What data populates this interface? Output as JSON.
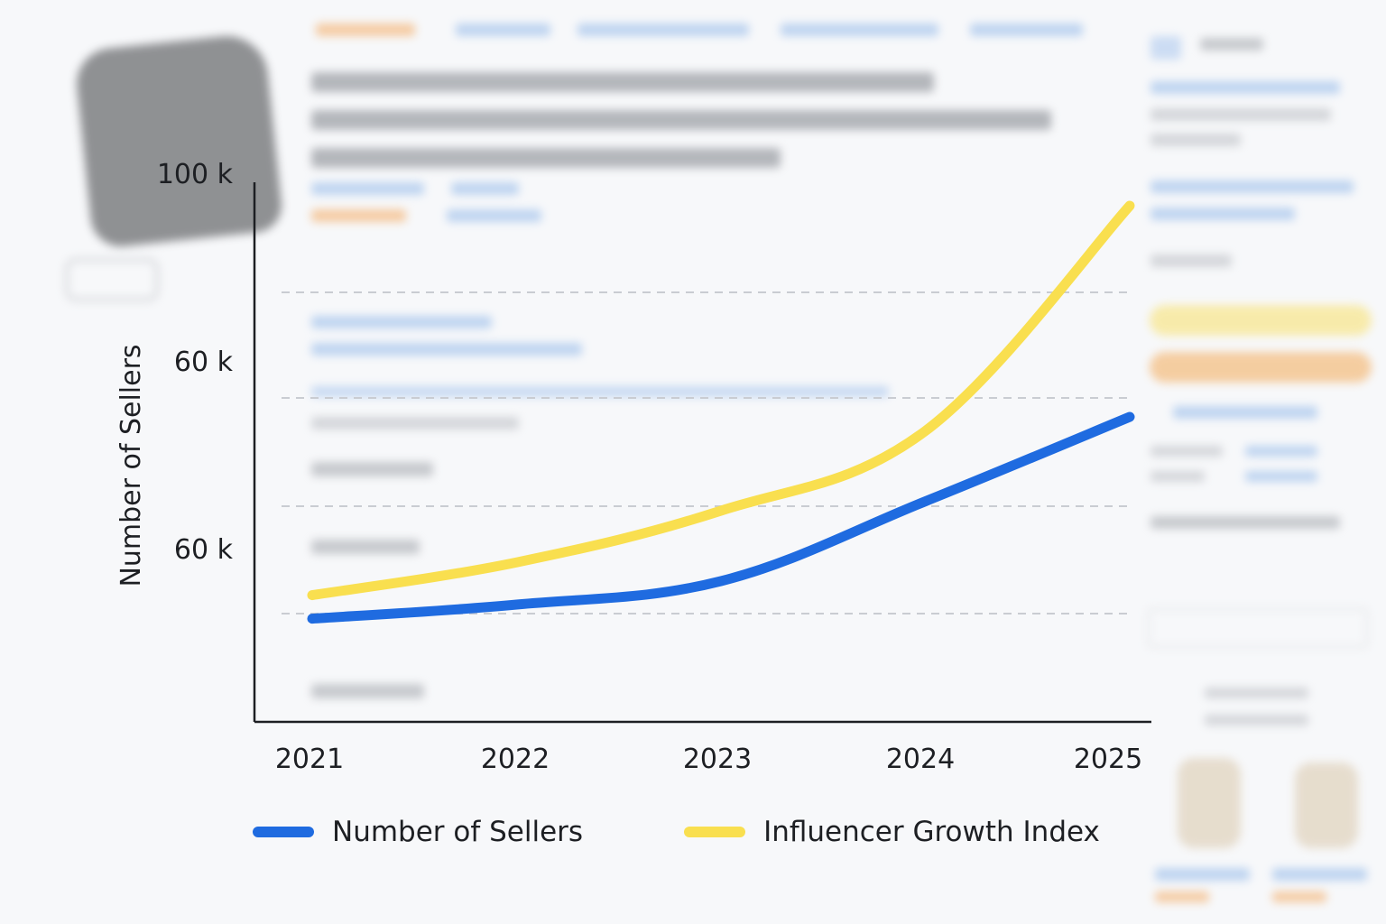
{
  "colors": {
    "sellers": "#1f6be0",
    "influencer": "#f9df4f",
    "axis": "#1d1f23",
    "grid": "#c9ccd2"
  },
  "chart_data": {
    "type": "line",
    "title": "",
    "xlabel": "",
    "ylabel": "Number of Sellers",
    "x": [
      2021,
      2022,
      2023,
      2024,
      2025
    ],
    "x_tick_labels": [
      "2021",
      "2022",
      "2023",
      "2024",
      "2025"
    ],
    "y_tick_labels": [
      "100 k",
      "60 k",
      "60 k"
    ],
    "grid": "dashed horizontal",
    "legend_placement": "bottom",
    "series": [
      {
        "name": "Number of Sellers",
        "color": "#1f6be0",
        "values": [
          5,
          8,
          13,
          30,
          48
        ]
      },
      {
        "name": "Influencer Growth Index",
        "color": "#f9df4f",
        "values": [
          10,
          17,
          28,
          45,
          93
        ]
      }
    ],
    "y_range": [
      -17,
      98
    ]
  }
}
